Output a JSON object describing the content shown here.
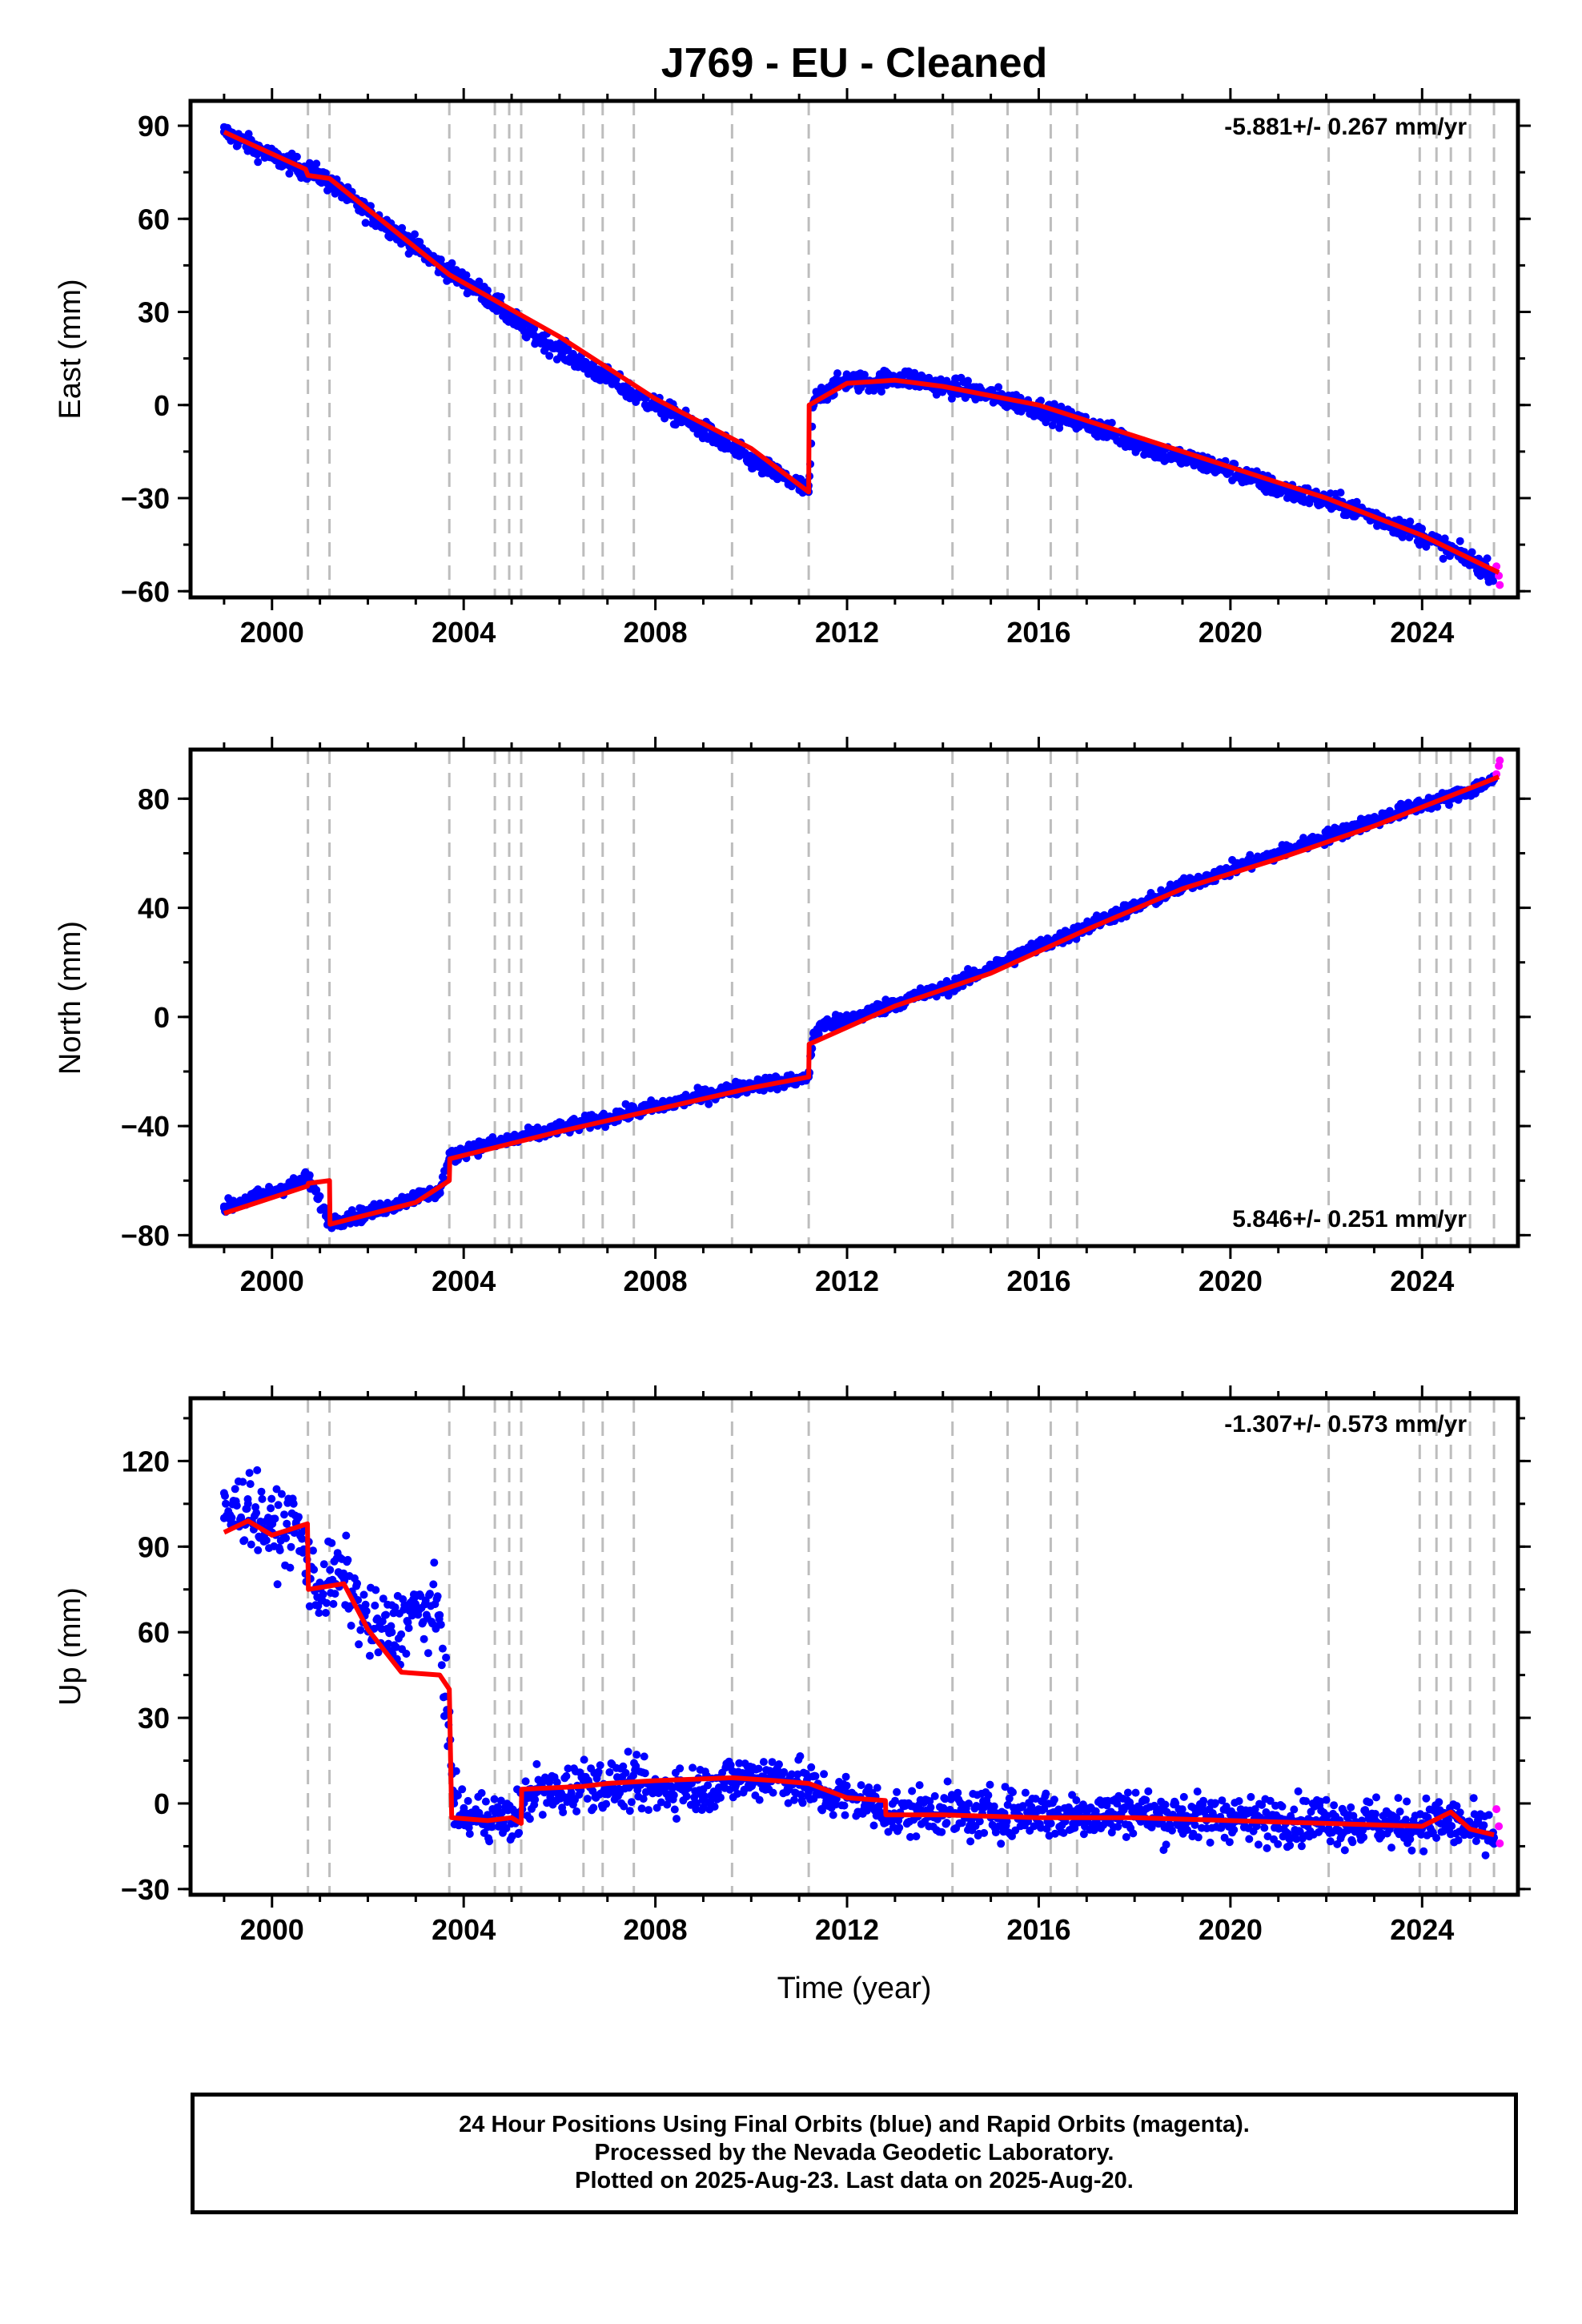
{
  "chart_data": [
    {
      "type": "scatter",
      "title": "J769  - EU - Cleaned",
      "ylabel": "East (mm)",
      "xlabel": "",
      "annotation": "-5.881+/- 0.267 mm/yr",
      "annotation_position": "top-right",
      "xlim": [
        1998.3,
        2026.0
      ],
      "ylim": [
        -62,
        98
      ],
      "xticks": [
        2000,
        2004,
        2008,
        2012,
        2016,
        2020,
        2024
      ],
      "xtick_labels": [
        "2000",
        "2004",
        "2008",
        "2012",
        "2016",
        "2020",
        "2024"
      ],
      "yticks": [
        -60,
        -30,
        0,
        30,
        60,
        90
      ],
      "ytick_labels": [
        "−60",
        "−30",
        "0",
        "30",
        "60",
        "90"
      ],
      "grid": false,
      "event_lines": [
        2000.75,
        2001.2,
        2003.7,
        2004.65,
        2004.95,
        2005.2,
        2006.5,
        2006.9,
        2007.55,
        2009.6,
        2011.2,
        2014.2,
        2015.35,
        2016.25,
        2016.8,
        2022.05,
        2023.95,
        2024.3,
        2024.6,
        2025.0,
        2025.5
      ],
      "series": [
        {
          "name": "Final Orbits",
          "color": "#0000ff",
          "kind": "points",
          "x": [
            1999.0,
            1999.5,
            2000.0,
            2000.5,
            2001.0,
            2001.5,
            2002.0,
            2002.5,
            2003.0,
            2003.5,
            2004.0,
            2004.5,
            2005.0,
            2005.5,
            2006.0,
            2006.5,
            2007.0,
            2007.5,
            2008.0,
            2008.5,
            2009.0,
            2009.5,
            2010.0,
            2010.5,
            2011.0,
            2011.2,
            2011.3,
            2011.5,
            2012.0,
            2012.5,
            2013.0,
            2013.5,
            2014.0,
            2014.5,
            2015.0,
            2015.5,
            2016.0,
            2016.5,
            2017.0,
            2017.5,
            2018.0,
            2018.5,
            2019.0,
            2019.5,
            2020.0,
            2020.5,
            2021.0,
            2021.5,
            2022.0,
            2022.5,
            2023.0,
            2023.5,
            2024.0,
            2024.5,
            2025.0,
            2025.5
          ],
          "y": [
            88,
            84,
            80,
            77,
            74,
            68,
            62,
            57,
            51,
            45,
            40,
            35,
            28,
            22,
            18,
            13,
            9,
            4,
            0,
            -4,
            -8,
            -13,
            -18,
            -22,
            -26,
            -28,
            1,
            4,
            8,
            7,
            9,
            8,
            6,
            5,
            3,
            1,
            -1,
            -4,
            -6,
            -9,
            -12,
            -15,
            -17,
            -19,
            -21,
            -24,
            -27,
            -29,
            -31,
            -33,
            -36,
            -39,
            -42,
            -46,
            -50,
            -54
          ]
        },
        {
          "name": "Rapid Orbits",
          "color": "#ff00ff",
          "kind": "points",
          "x": [
            2025.55,
            2025.6,
            2025.62
          ],
          "y": [
            -52,
            -55,
            -58
          ]
        },
        {
          "name": "Model",
          "color": "#ff0000",
          "kind": "line",
          "x": [
            1999.0,
            2000.7,
            2000.75,
            2001.2,
            2003.7,
            2006.0,
            2008.0,
            2010.0,
            2011.2,
            2011.21,
            2012.0,
            2013.0,
            2014.0,
            2016.0,
            2018.0,
            2020.0,
            2022.0,
            2024.0,
            2025.6
          ],
          "y": [
            88,
            76,
            74,
            73,
            42,
            22,
            2,
            -14,
            -28,
            0,
            7,
            8,
            6,
            0,
            -10,
            -20,
            -30,
            -42,
            -54
          ]
        }
      ]
    },
    {
      "type": "scatter",
      "title": "",
      "ylabel": "North (mm)",
      "xlabel": "",
      "annotation": "5.846+/- 0.251 mm/yr",
      "annotation_position": "bottom-right",
      "xlim": [
        1998.3,
        2026.0
      ],
      "ylim": [
        -84,
        98
      ],
      "xticks": [
        2000,
        2004,
        2008,
        2012,
        2016,
        2020,
        2024
      ],
      "xtick_labels": [
        "2000",
        "2004",
        "2008",
        "2012",
        "2016",
        "2020",
        "2024"
      ],
      "yticks": [
        -80,
        -40,
        0,
        40,
        80
      ],
      "ytick_labels": [
        "−80",
        "−40",
        "0",
        "40",
        "80"
      ],
      "grid": false,
      "event_lines": [
        2000.75,
        2001.2,
        2003.7,
        2004.65,
        2004.95,
        2005.2,
        2006.5,
        2006.9,
        2007.55,
        2009.6,
        2011.2,
        2014.2,
        2015.35,
        2016.25,
        2016.8,
        2022.05,
        2023.95,
        2024.3,
        2024.6,
        2025.0,
        2025.5
      ],
      "series": [
        {
          "name": "Final Orbits",
          "color": "#0000ff",
          "kind": "points",
          "x": [
            1999.0,
            1999.5,
            2000.0,
            2000.5,
            2000.75,
            2001.2,
            2001.5,
            2002.0,
            2002.5,
            2003.0,
            2003.5,
            2003.7,
            2004.0,
            2004.5,
            2005.0,
            2005.5,
            2006.0,
            2006.5,
            2007.0,
            2007.5,
            2008.0,
            2008.5,
            2009.0,
            2009.5,
            2010.0,
            2010.5,
            2011.0,
            2011.2,
            2011.3,
            2011.5,
            2012.0,
            2012.5,
            2013.0,
            2013.5,
            2014.0,
            2014.5,
            2015.0,
            2015.5,
            2016.0,
            2016.5,
            2017.0,
            2017.5,
            2018.0,
            2018.5,
            2019.0,
            2019.5,
            2020.0,
            2020.5,
            2021.0,
            2021.5,
            2022.0,
            2022.5,
            2023.0,
            2023.5,
            2024.0,
            2024.5,
            2025.0,
            2025.5
          ],
          "y": [
            -70,
            -67,
            -64,
            -61,
            -59,
            -75,
            -74,
            -72,
            -69,
            -66,
            -64,
            -52,
            -49,
            -47,
            -45,
            -43,
            -41,
            -39,
            -37,
            -35,
            -33,
            -31,
            -29,
            -27,
            -25,
            -24,
            -23,
            -22,
            -6,
            -3,
            -1,
            2,
            5,
            8,
            10,
            14,
            18,
            22,
            26,
            29,
            33,
            37,
            40,
            44,
            48,
            51,
            54,
            57,
            60,
            63,
            66,
            69,
            72,
            75,
            78,
            80,
            83,
            87
          ]
        },
        {
          "name": "Rapid Orbits",
          "color": "#ff00ff",
          "kind": "points",
          "x": [
            2025.55,
            2025.6,
            2025.62
          ],
          "y": [
            89,
            92,
            94
          ]
        },
        {
          "name": "Model",
          "color": "#ff0000",
          "kind": "line",
          "x": [
            1999.0,
            2000.74,
            2000.76,
            2001.2,
            2001.21,
            2003.0,
            2003.7,
            2003.71,
            2006.0,
            2008.0,
            2010.0,
            2011.2,
            2011.21,
            2013.0,
            2015.0,
            2017.0,
            2019.0,
            2021.0,
            2023.0,
            2025.6
          ],
          "y": [
            -72,
            -62,
            -61,
            -60,
            -76,
            -68,
            -60,
            -52,
            -42,
            -34,
            -26,
            -22,
            -10,
            4,
            16,
            32,
            47,
            58,
            70,
            88
          ]
        }
      ]
    },
    {
      "type": "scatter",
      "title": "",
      "ylabel": "Up (mm)",
      "xlabel": "Time (year)",
      "annotation": "-1.307+/- 0.573 mm/yr",
      "annotation_position": "top-right",
      "xlim": [
        1998.3,
        2026.0
      ],
      "ylim": [
        -32,
        142
      ],
      "xticks": [
        2000,
        2004,
        2008,
        2012,
        2016,
        2020,
        2024
      ],
      "xtick_labels": [
        "2000",
        "2004",
        "2008",
        "2012",
        "2016",
        "2020",
        "2024"
      ],
      "yticks": [
        -30,
        0,
        30,
        60,
        90,
        120
      ],
      "ytick_labels": [
        "−30",
        "0",
        "30",
        "60",
        "90",
        "120"
      ],
      "grid": false,
      "event_lines": [
        2000.75,
        2001.2,
        2003.7,
        2004.65,
        2004.95,
        2005.2,
        2006.5,
        2006.9,
        2007.55,
        2009.6,
        2011.2,
        2014.2,
        2015.35,
        2016.25,
        2016.8,
        2022.05,
        2023.95,
        2024.3,
        2024.6,
        2025.0,
        2025.5
      ],
      "series": [
        {
          "name": "Final Orbits",
          "color": "#0000ff",
          "kind": "points",
          "x": [
            1999.0,
            1999.5,
            2000.0,
            2000.5,
            2000.9,
            2001.2,
            2001.5,
            2002.0,
            2002.5,
            2003.0,
            2003.5,
            2003.8,
            2004.0,
            2004.5,
            2005.0,
            2005.5,
            2006.0,
            2006.5,
            2007.0,
            2007.5,
            2008.0,
            2008.5,
            2009.0,
            2009.5,
            2010.0,
            2010.5,
            2011.0,
            2011.5,
            2012.0,
            2012.5,
            2013.0,
            2013.5,
            2014.0,
            2014.5,
            2015.0,
            2015.5,
            2016.0,
            2016.5,
            2017.0,
            2017.5,
            2018.0,
            2018.5,
            2019.0,
            2019.5,
            2020.0,
            2020.5,
            2021.0,
            2021.5,
            2022.0,
            2022.5,
            2023.0,
            2023.5,
            2024.0,
            2024.5,
            2025.0,
            2025.5
          ],
          "y": [
            100,
            105,
            95,
            98,
            75,
            78,
            80,
            62,
            60,
            68,
            66,
            0,
            -5,
            -4,
            -6,
            5,
            3,
            8,
            6,
            7,
            4,
            6,
            5,
            8,
            9,
            10,
            7,
            3,
            2,
            0,
            -4,
            -3,
            -2,
            -5,
            -3,
            -4,
            -2,
            -5,
            -3,
            -4,
            -2,
            -5,
            -4,
            -6,
            -4,
            -7,
            -5,
            -6,
            -5,
            -7,
            -6,
            -8,
            -7,
            -6,
            -9,
            -12
          ]
        },
        {
          "name": "Rapid Orbits",
          "color": "#ff00ff",
          "kind": "points",
          "x": [
            2025.55,
            2025.6,
            2025.62
          ],
          "y": [
            -2,
            -8,
            -14
          ]
        },
        {
          "name": "Model",
          "color": "#ff0000",
          "kind": "line",
          "x": [
            1999.0,
            1999.5,
            2000.0,
            2000.74,
            2000.76,
            2001.5,
            2002.0,
            2002.7,
            2003.5,
            2003.7,
            2003.75,
            2004.5,
            2005.0,
            2005.2,
            2005.21,
            2006.5,
            2007.0,
            2008.0,
            2009.6,
            2010.5,
            2011.2,
            2012.0,
            2012.8,
            2012.81,
            2014.0,
            2016.0,
            2018.0,
            2020.0,
            2022.0,
            2024.0,
            2024.6,
            2025.0,
            2025.5
          ],
          "y": [
            95,
            99,
            94,
            98,
            75,
            77,
            61,
            46,
            45,
            40,
            -5,
            -6,
            -5,
            -7,
            5,
            6,
            7,
            8,
            9,
            8,
            7,
            2,
            1,
            -4,
            -4,
            -5,
            -5,
            -6,
            -7,
            -8,
            -3,
            -9,
            -11
          ]
        }
      ]
    }
  ],
  "footer": {
    "line1": "24 Hour Positions Using Final Orbits (blue) and Rapid Orbits (magenta).",
    "line2": "Processed by the Nevada Geodetic Laboratory.",
    "line3": "Plotted on 2025-Aug-23. Last data on 2025-Aug-20."
  }
}
